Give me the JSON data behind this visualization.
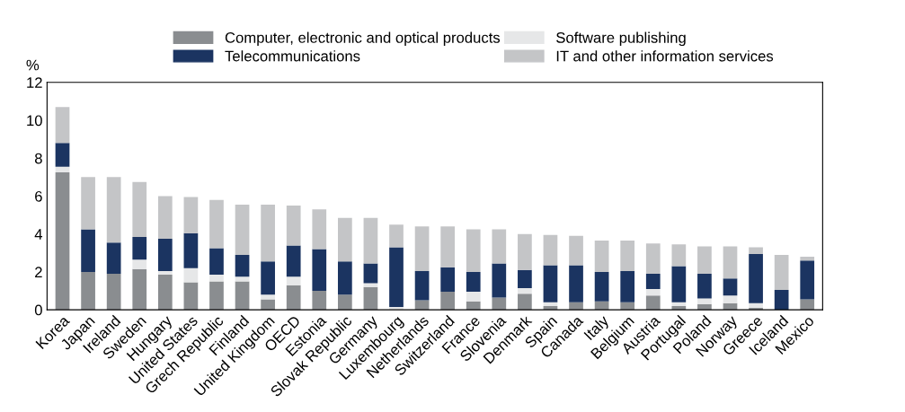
{
  "chart_data": {
    "type": "bar",
    "stacked": true,
    "ylabel": "%",
    "ylim": [
      0,
      12
    ],
    "yticks": [
      0,
      2,
      4,
      6,
      8,
      10,
      12
    ],
    "grid": false,
    "legend": "top",
    "categories": [
      "Korea",
      "Japan",
      "Ireland",
      "Sweden",
      "Hungary",
      "United States",
      "Grech Republic",
      "Finland",
      "United Kingdom",
      "OECD",
      "Estonia",
      "Slovak Republic",
      "Germany",
      "Luxembourg",
      "Netherlands",
      "Switzerland",
      "France",
      "Slovenia",
      "Denmark",
      "Spain",
      "Canada",
      "Italy",
      "Belgium",
      "Austria",
      "Portugal",
      "Poland",
      "Norway",
      "Greece",
      "Iceland",
      "Mexico"
    ],
    "series": [
      {
        "name": "Computer, electronic and optical products",
        "color": "#8a8d90",
        "values": [
          7.25,
          2.0,
          1.9,
          2.15,
          1.85,
          1.45,
          1.5,
          1.5,
          0.55,
          1.3,
          1.0,
          0.8,
          1.2,
          0,
          0.5,
          0.95,
          0.45,
          0.65,
          0.85,
          0.2,
          0.4,
          0.45,
          0.4,
          0.75,
          0.2,
          0.3,
          0.35,
          0.1,
          0,
          0.55
        ]
      },
      {
        "name": "Software publishing",
        "color": "#e6e7e8",
        "values": [
          0.3,
          0,
          0,
          0.5,
          0.2,
          0.75,
          0.35,
          0.25,
          0.25,
          0.45,
          0,
          0,
          0.2,
          0.15,
          0,
          0,
          0.5,
          0,
          0.3,
          0.2,
          0,
          0,
          0,
          0.35,
          0.2,
          0.3,
          0.4,
          0.25,
          0,
          0
        ]
      },
      {
        "name": "Telecommunications",
        "color": "#1b3461",
        "values": [
          1.25,
          2.25,
          1.65,
          1.2,
          1.7,
          1.85,
          1.4,
          1.15,
          1.75,
          1.65,
          2.2,
          1.75,
          1.05,
          3.15,
          1.55,
          1.3,
          1.05,
          1.8,
          0.95,
          1.95,
          1.95,
          1.55,
          1.65,
          0.8,
          1.9,
          1.3,
          0.9,
          2.6,
          1.05,
          2.05
        ]
      },
      {
        "name": "IT and other information services",
        "color": "#c4c5c7",
        "values": [
          1.9,
          2.75,
          3.45,
          2.9,
          2.25,
          1.9,
          2.55,
          2.65,
          3.0,
          2.1,
          2.1,
          2.3,
          2.4,
          1.2,
          2.35,
          2.15,
          2.25,
          1.8,
          1.9,
          1.6,
          1.55,
          1.65,
          1.6,
          1.6,
          1.15,
          1.45,
          1.7,
          0.35,
          1.85,
          0.2
        ]
      }
    ]
  }
}
